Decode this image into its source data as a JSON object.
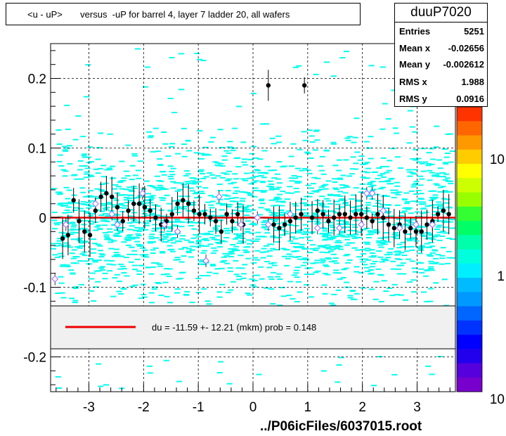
{
  "title": "<u - uP>       versus  -uP for barrel 4, layer 7 ladder 20, all wafers",
  "stats": {
    "name": "duuP7020",
    "rows": [
      {
        "key": "Entries",
        "value": "5251"
      },
      {
        "key": "Mean x",
        "value": "-0.02656"
      },
      {
        "key": "Mean y",
        "value": "-0.002612"
      },
      {
        "key": "RMS x",
        "value": "1.988"
      },
      {
        "key": "RMS y",
        "value": "0.0916"
      }
    ]
  },
  "fit_legend": "du =  -11.59 +- 12.21 (mkm) prob = 0.148",
  "file_label": "../P06icFiles/6037015.root",
  "colors": {
    "fit_line": "#ee0000",
    "cell": "#00ffee",
    "marker": "#000000",
    "open_marker": "#9966ff",
    "legend_bg": "#f0f0f0"
  },
  "chart_data": {
    "type": "heatmap",
    "x_ticks": [
      "-3",
      "-2",
      "-1",
      "0",
      "1",
      "2",
      "3"
    ],
    "y_ticks": [
      "0.2",
      "0.1",
      "0",
      "-0.1",
      "-0.2"
    ],
    "z_ticks": [
      "10",
      "1",
      "10"
    ],
    "xlim": [
      -3.7,
      3.7
    ],
    "ylim": [
      -0.25,
      0.25
    ],
    "grid": true,
    "fit_line_y": -1.16e-05,
    "profile_points": [
      {
        "x": -3.48,
        "y": -0.03
      },
      {
        "x": -3.38,
        "y": -0.025
      },
      {
        "x": -3.28,
        "y": 0.025
      },
      {
        "x": -3.18,
        "y": -0.005
      },
      {
        "x": -3.08,
        "y": -0.02
      },
      {
        "x": -2.98,
        "y": -0.025
      },
      {
        "x": -2.88,
        "y": 0.01
      },
      {
        "x": -2.78,
        "y": 0.03
      },
      {
        "x": -2.68,
        "y": 0.035
      },
      {
        "x": -2.58,
        "y": 0.03
      },
      {
        "x": -2.48,
        "y": 0.015
      },
      {
        "x": -2.38,
        "y": -0.005
      },
      {
        "x": -2.28,
        "y": 0.01
      },
      {
        "x": -2.18,
        "y": 0.02
      },
      {
        "x": -2.08,
        "y": 0.02
      },
      {
        "x": -1.98,
        "y": 0.015
      },
      {
        "x": -1.88,
        "y": 0.01
      },
      {
        "x": -1.78,
        "y": 0.0
      },
      {
        "x": -1.68,
        "y": -0.01
      },
      {
        "x": -1.58,
        "y": -0.005
      },
      {
        "x": -1.48,
        "y": 0.005
      },
      {
        "x": -1.38,
        "y": 0.02
      },
      {
        "x": -1.28,
        "y": 0.025
      },
      {
        "x": -1.18,
        "y": 0.02
      },
      {
        "x": -1.08,
        "y": 0.01
      },
      {
        "x": -0.98,
        "y": 0.005
      },
      {
        "x": -0.88,
        "y": 0.005
      },
      {
        "x": -0.78,
        "y": 0.0
      },
      {
        "x": -0.68,
        "y": -0.005
      },
      {
        "x": -0.58,
        "y": -0.02
      },
      {
        "x": -0.48,
        "y": 0.005
      },
      {
        "x": -0.38,
        "y": -0.005
      },
      {
        "x": -0.28,
        "y": 0.005
      },
      {
        "x": -0.18,
        "y": -0.01
      },
      {
        "x": 0.28,
        "y": 0.19
      },
      {
        "x": 0.38,
        "y": -0.01
      },
      {
        "x": 0.48,
        "y": -0.015
      },
      {
        "x": 0.58,
        "y": -0.01
      },
      {
        "x": 0.68,
        "y": -0.005
      },
      {
        "x": 0.78,
        "y": 0.0
      },
      {
        "x": 0.88,
        "y": 0.005
      },
      {
        "x": 0.94,
        "y": 0.19
      },
      {
        "x": 1.08,
        "y": 0.0
      },
      {
        "x": 1.18,
        "y": 0.01
      },
      {
        "x": 1.28,
        "y": 0.005
      },
      {
        "x": 1.38,
        "y": -0.005
      },
      {
        "x": 1.48,
        "y": 0.0
      },
      {
        "x": 1.58,
        "y": 0.005
      },
      {
        "x": 1.68,
        "y": 0.005
      },
      {
        "x": 1.78,
        "y": 0.0
      },
      {
        "x": 1.88,
        "y": 0.005
      },
      {
        "x": 1.98,
        "y": 0.005
      },
      {
        "x": 2.08,
        "y": 0.0
      },
      {
        "x": 2.18,
        "y": -0.005
      },
      {
        "x": 2.28,
        "y": 0.005
      },
      {
        "x": 2.38,
        "y": 0.0
      },
      {
        "x": 2.48,
        "y": -0.01
      },
      {
        "x": 2.58,
        "y": -0.015
      },
      {
        "x": 2.68,
        "y": -0.01
      },
      {
        "x": 2.78,
        "y": -0.02
      },
      {
        "x": 2.88,
        "y": -0.015
      },
      {
        "x": 2.98,
        "y": -0.02
      },
      {
        "x": 3.08,
        "y": -0.02
      },
      {
        "x": 3.18,
        "y": -0.01
      },
      {
        "x": 3.28,
        "y": -0.005
      },
      {
        "x": 3.38,
        "y": 0.005
      },
      {
        "x": 3.48,
        "y": 0.01
      },
      {
        "x": 3.58,
        "y": 0.005
      }
    ],
    "open_points": [
      {
        "x": -3.62,
        "y": -0.088
      },
      {
        "x": -3.42,
        "y": -0.01
      },
      {
        "x": -2.88,
        "y": 0.02
      },
      {
        "x": -2.58,
        "y": 0.005
      },
      {
        "x": -2.48,
        "y": -0.01
      },
      {
        "x": -2.02,
        "y": 0.035
      },
      {
        "x": -1.62,
        "y": -0.01
      },
      {
        "x": -1.38,
        "y": -0.02
      },
      {
        "x": -0.86,
        "y": -0.062
      },
      {
        "x": -0.62,
        "y": 0.03
      },
      {
        "x": -0.22,
        "y": -0.01
      },
      {
        "x": 0.08,
        "y": 0.0
      },
      {
        "x": 0.28,
        "y": -0.01
      },
      {
        "x": 0.68,
        "y": 0.005
      },
      {
        "x": 1.18,
        "y": -0.015
      },
      {
        "x": 1.58,
        "y": -0.015
      },
      {
        "x": 1.98,
        "y": -0.01
      },
      {
        "x": 2.08,
        "y": 0.035
      },
      {
        "x": 2.18,
        "y": 0.035
      },
      {
        "x": 2.38,
        "y": 0.01
      },
      {
        "x": 2.68,
        "y": -0.015
      },
      {
        "x": 2.98,
        "y": -0.01
      },
      {
        "x": 3.28,
        "y": -0.01
      }
    ]
  }
}
